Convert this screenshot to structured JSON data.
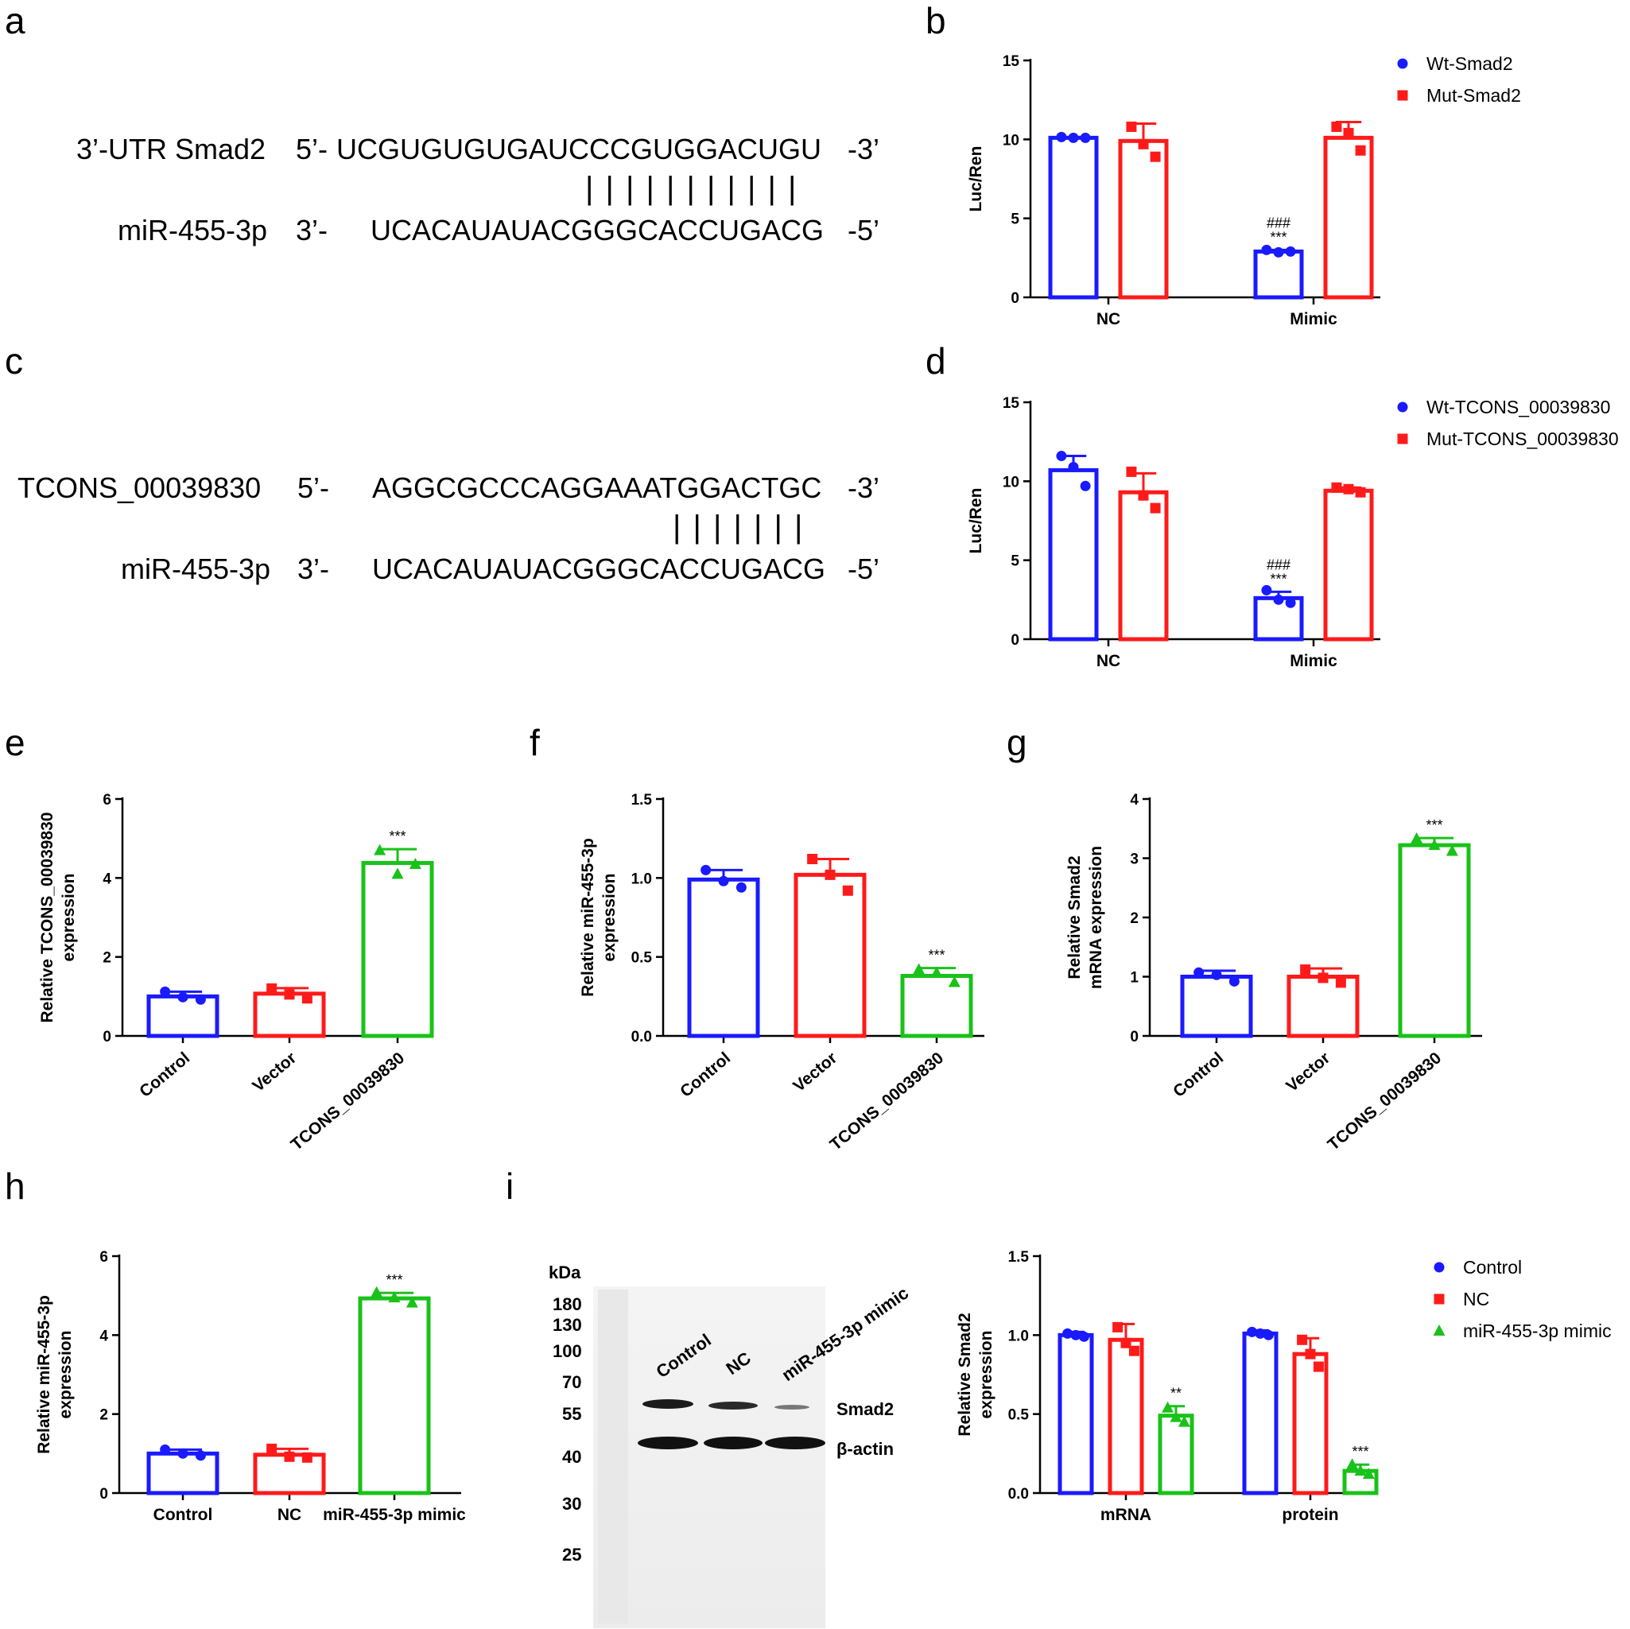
{
  "colors": {
    "blue": "#1a1aff",
    "red": "#ff1a1a",
    "green": "#19c219",
    "black": "#000000"
  },
  "panel_letters": [
    "a",
    "b",
    "c",
    "d",
    "e",
    "f",
    "g",
    "h",
    "i"
  ],
  "seq_a": {
    "row1_name": "3’-UTR Smad2",
    "row1_dir": "5’-",
    "row1_seq": "UCGUGUGUGAUCCCGUGGACUGU",
    "row1_end": "-3’",
    "row2_name": "miR-455-3p",
    "row2_dir": "3’-",
    "row2_seq": "UCACAUAUACGGGCACCUGACG",
    "row2_end": "-5’",
    "bonds": "| | | | | | | | | | |"
  },
  "seq_c": {
    "row1_name": "TCONS_00039830",
    "row1_dir": "5’-",
    "row1_seq": "AGGCGCCCAGGAAATGGACTGC",
    "row1_end": "-3’",
    "row2_name": "miR-455-3p",
    "row2_dir": "3’-",
    "row2_seq": "UCACAUAUACGGGCACCUGACG",
    "row2_end": "-5’",
    "bonds": "| | | | | | |"
  },
  "blot": {
    "kda": "kDa",
    "markers": [
      "180",
      "130",
      "100",
      "70",
      "55",
      "40",
      "30",
      "25"
    ],
    "lanes": [
      "Control",
      "NC",
      "miR-455-3p mimic"
    ],
    "band1": "Smad2",
    "band2": "β-actin"
  },
  "chart_data": [
    {
      "id": "b",
      "type": "bar",
      "ylabel": "Luc/Ren",
      "ylim": [
        0,
        15
      ],
      "yticks": [
        "0",
        "5",
        "10",
        "15"
      ],
      "categories": [
        "NC",
        "Mimic"
      ],
      "series": [
        {
          "name": "Wt-Smad2",
          "color": "#1a1aff",
          "marker": "circle",
          "values": [
            10.1,
            2.9
          ],
          "errors": [
            0.05,
            0.1
          ],
          "points": [
            [
              10.15,
              10.1,
              10.1
            ],
            [
              3.0,
              2.85,
              2.9
            ]
          ]
        },
        {
          "name": "Mut-Smad2",
          "color": "#ff1a1a",
          "marker": "square",
          "values": [
            9.9,
            10.1
          ],
          "errors": [
            1.1,
            1.0
          ],
          "points": [
            [
              10.8,
              9.7,
              8.9
            ],
            [
              10.8,
              10.4,
              9.3
            ]
          ]
        }
      ],
      "annotations": [
        {
          "category": "Mimic",
          "series": 0,
          "lines": [
            "###",
            "***"
          ]
        }
      ]
    },
    {
      "id": "d",
      "type": "bar",
      "ylabel": "Luc/Ren",
      "ylim": [
        0,
        15
      ],
      "yticks": [
        "0",
        "5",
        "10",
        "15"
      ],
      "categories": [
        "NC",
        "Mimic"
      ],
      "series": [
        {
          "name": "Wt-TCONS_00039830",
          "color": "#1a1aff",
          "marker": "circle",
          "values": [
            10.7,
            2.6
          ],
          "errors": [
            0.9,
            0.4
          ],
          "points": [
            [
              11.6,
              10.9,
              9.7
            ],
            [
              3.1,
              2.5,
              2.3
            ]
          ]
        },
        {
          "name": "Mut-TCONS_00039830",
          "color": "#ff1a1a",
          "marker": "square",
          "values": [
            9.3,
            9.4
          ],
          "errors": [
            1.2,
            0.2
          ],
          "points": [
            [
              10.6,
              9.1,
              8.3
            ],
            [
              9.6,
              9.5,
              9.3
            ]
          ]
        }
      ],
      "annotations": [
        {
          "category": "Mimic",
          "series": 0,
          "lines": [
            "###",
            "***"
          ]
        }
      ]
    },
    {
      "id": "e",
      "type": "bar",
      "ylabel": [
        "Relative TCONS_00039830",
        "expression"
      ],
      "ylim": [
        0,
        6
      ],
      "yticks": [
        "0",
        "2",
        "4",
        "6"
      ],
      "categories": [
        "Control",
        "Vector",
        "TCONS_00039830"
      ],
      "rotate_labels": true,
      "series": [
        {
          "colors": [
            "#1a1aff",
            "#ff1a1a",
            "#19c219"
          ],
          "markers": [
            "circle",
            "square",
            "triangle"
          ],
          "values": [
            1.0,
            1.07,
            4.38
          ],
          "errors": [
            0.12,
            0.14,
            0.35
          ],
          "points": [
            [
              1.12,
              0.98,
              0.92
            ],
            [
              1.2,
              1.05,
              0.95
            ],
            [
              4.7,
              4.1,
              4.35
            ]
          ]
        }
      ],
      "annotations": [
        {
          "index": 2,
          "lines": [
            "***"
          ]
        }
      ]
    },
    {
      "id": "f",
      "type": "bar",
      "ylabel": [
        "Relative miR-455-3p",
        "expression"
      ],
      "ylim": [
        0,
        1.5
      ],
      "yticks": [
        "0.0",
        "0.5",
        "1.0",
        "1.5"
      ],
      "categories": [
        "Control",
        "Vector",
        "TCONS_00039830"
      ],
      "rotate_labels": true,
      "series": [
        {
          "colors": [
            "#1a1aff",
            "#ff1a1a",
            "#19c219"
          ],
          "markers": [
            "circle",
            "square",
            "triangle"
          ],
          "values": [
            0.99,
            1.02,
            0.38
          ],
          "errors": [
            0.06,
            0.1,
            0.05
          ],
          "points": [
            [
              1.05,
              0.98,
              0.94
            ],
            [
              1.12,
              1.02,
              0.92
            ],
            [
              0.42,
              0.4,
              0.34
            ]
          ]
        }
      ],
      "annotations": [
        {
          "index": 2,
          "lines": [
            "***"
          ]
        }
      ]
    },
    {
      "id": "g",
      "type": "bar",
      "ylabel": [
        "Relative Smad2",
        "mRNA expression"
      ],
      "ylim": [
        0,
        4
      ],
      "yticks": [
        "0",
        "1",
        "2",
        "3",
        "4"
      ],
      "categories": [
        "Control",
        "Vector",
        "TCONS_00039830"
      ],
      "rotate_labels": true,
      "series": [
        {
          "colors": [
            "#1a1aff",
            "#ff1a1a",
            "#19c219"
          ],
          "markers": [
            "circle",
            "square",
            "triangle"
          ],
          "values": [
            1.0,
            1.0,
            3.22
          ],
          "errors": [
            0.1,
            0.14,
            0.12
          ],
          "points": [
            [
              1.07,
              1.03,
              0.92
            ],
            [
              1.12,
              0.98,
              0.9
            ],
            [
              3.33,
              3.22,
              3.12
            ]
          ]
        }
      ],
      "annotations": [
        {
          "index": 2,
          "lines": [
            "***"
          ]
        }
      ]
    },
    {
      "id": "h",
      "type": "bar",
      "ylabel": [
        "Relative miR-455-3p",
        "expression"
      ],
      "ylim": [
        0,
        6
      ],
      "yticks": [
        "0",
        "2",
        "4",
        "6"
      ],
      "categories": [
        "Control",
        "NC",
        "miR-455-3p mimic"
      ],
      "rotate_labels": false,
      "series": [
        {
          "colors": [
            "#1a1aff",
            "#ff1a1a",
            "#19c219"
          ],
          "markers": [
            "circle",
            "square",
            "triangle"
          ],
          "values": [
            1.0,
            0.97,
            4.93
          ],
          "errors": [
            0.1,
            0.15,
            0.14
          ],
          "points": [
            [
              1.1,
              1.0,
              0.95
            ],
            [
              1.12,
              0.92,
              0.9
            ],
            [
              5.08,
              4.95,
              4.82
            ]
          ]
        }
      ],
      "annotations": [
        {
          "index": 2,
          "lines": [
            "***"
          ]
        }
      ]
    },
    {
      "id": "i",
      "type": "bar",
      "ylabel": [
        "Relative Smad2",
        "expression"
      ],
      "ylim": [
        0,
        1.5
      ],
      "yticks": [
        "0.0",
        "0.5",
        "1.0",
        "1.5"
      ],
      "categories": [
        "mRNA",
        "protein"
      ],
      "series": [
        {
          "name": "Control",
          "color": "#1a1aff",
          "marker": "circle",
          "values": [
            1.0,
            1.01
          ],
          "errors": [
            0.02,
            0.02
          ],
          "points": [
            [
              1.01,
              1.0,
              0.99
            ],
            [
              1.02,
              1.01,
              1.0
            ]
          ]
        },
        {
          "name": "NC",
          "color": "#ff1a1a",
          "marker": "square",
          "values": [
            0.97,
            0.88
          ],
          "errors": [
            0.1,
            0.1
          ],
          "points": [
            [
              1.05,
              0.95,
              0.9
            ],
            [
              0.97,
              0.88,
              0.8
            ]
          ]
        },
        {
          "name": "miR-455-3p mimic",
          "color": "#19c219",
          "marker": "triangle",
          "values": [
            0.49,
            0.14
          ],
          "errors": [
            0.06,
            0.04
          ],
          "points": [
            [
              0.54,
              0.48,
              0.45
            ],
            [
              0.18,
              0.14,
              0.12
            ]
          ]
        }
      ],
      "annotations": [
        {
          "category": "mRNA",
          "series": 2,
          "lines": [
            "**"
          ]
        },
        {
          "category": "protein",
          "series": 2,
          "lines": [
            "***"
          ]
        }
      ]
    }
  ]
}
